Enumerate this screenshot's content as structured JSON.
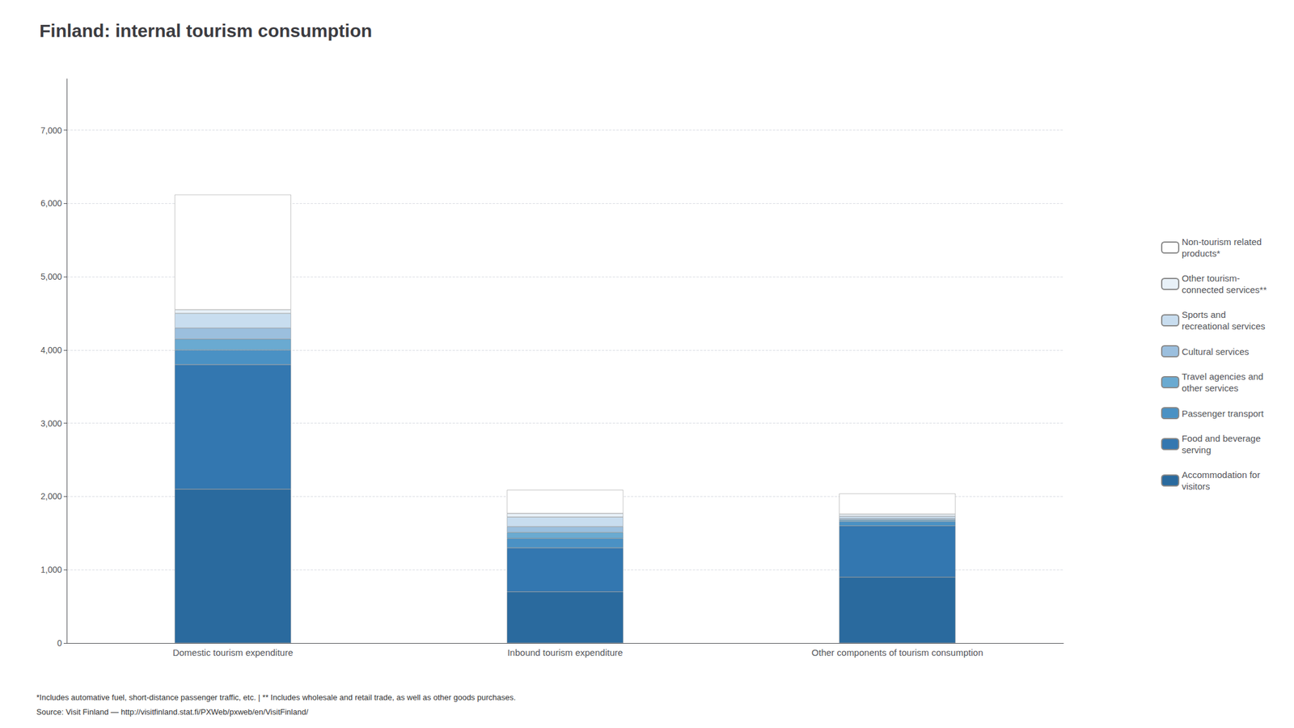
{
  "chart_data": {
    "type": "bar",
    "title": "Finland: internal tourism consumption",
    "categories": [
      "Domestic tourism expenditure",
      "Inbound tourism expenditure",
      "Other components of tourism consumption"
    ],
    "series": [
      {
        "name": "Non-tourism related\nproducts*",
        "color": "#ffffff",
        "values": [
          1570,
          320,
          280
        ]
      },
      {
        "name": "Other tourism-\nconnected services**",
        "color": "#e8f1f8",
        "values": [
          50,
          50,
          30
        ]
      },
      {
        "name": "Sports and\nrecreational services",
        "color": "#c8ddef",
        "values": [
          200,
          130,
          30
        ]
      },
      {
        "name": "Cultural services",
        "color": "#9bbfde",
        "values": [
          150,
          80,
          20
        ]
      },
      {
        "name": "Travel agencies and\nother services",
        "color": "#6aaad1",
        "values": [
          150,
          80,
          20
        ]
      },
      {
        "name": "Passenger transport",
        "color": "#4a91c4",
        "values": [
          200,
          130,
          60
        ]
      },
      {
        "name": "Food and beverage\nserving",
        "color": "#3377b0",
        "values": [
          1700,
          600,
          700
        ]
      },
      {
        "name": "Accommodation for\nvisitors",
        "color": "#2a6a9e",
        "values": [
          2100,
          700,
          900
        ]
      }
    ],
    "stacked": true,
    "ylim": [
      0,
      7700
    ],
    "yticks": [
      0,
      {
        "value": 1000,
        "label": "1,000"
      },
      {
        "value": 2000,
        "label": "2,000"
      },
      {
        "value": 3000,
        "label": "3,000"
      },
      {
        "value": 4000,
        "label": "4,000"
      },
      {
        "value": 5000,
        "label": "5,000"
      },
      {
        "value": 6000,
        "label": "6,000"
      },
      {
        "value": 7000,
        "label": "7,000"
      }
    ],
    "grid": true,
    "legend": "right",
    "annotations": [
      "*Includes automative fuel, short-distance passenger traffic, etc. | ** Includes wholesale and retail trade, as well as other goods purchases.",
      "Source: Visit Finland — http://visitfinland.stat.fi/PXWeb/pxweb/en/VisitFinland/"
    ]
  }
}
